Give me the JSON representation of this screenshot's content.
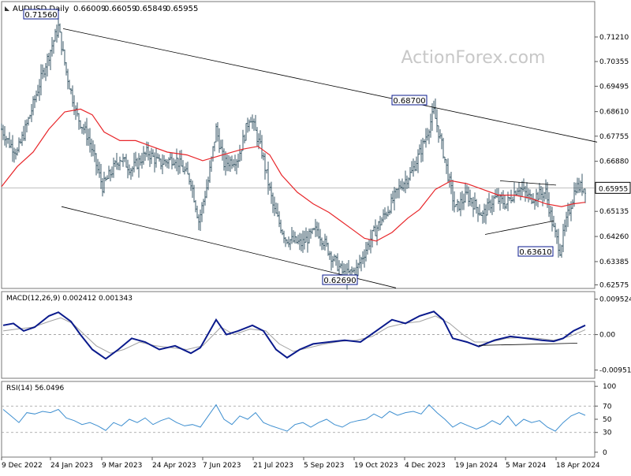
{
  "header": {
    "symbol": "AUDUSD,Daily",
    "ohlc": [
      "0.66009",
      "0.66059",
      "0.65849",
      "0.65955"
    ],
    "watermark": "ActionForex.com"
  },
  "colors": {
    "bars": "#3b5a68",
    "ma": "#e8262a",
    "macd": "#0a1a8c",
    "signal": "#a0a0a0",
    "rsi": "#3e8fd0",
    "lines": "#000000",
    "grid": "#9a9a9a",
    "label_box": "#0a1a8c"
  },
  "chart_data": [
    {
      "type": "candlestick",
      "title": "AUDUSD,Daily",
      "y_ticks": [
        "0.71210",
        "0.70355",
        "0.69495",
        "0.68610",
        "0.67755",
        "0.66880",
        "0.65955",
        "0.65135",
        "0.64260",
        "0.63385",
        "0.62575"
      ],
      "ylim": [
        0.6245,
        0.7195
      ],
      "x_ticks": [
        "9 Dec 2022",
        "24 Jan 2023",
        "9 Mar 2023",
        "24 Apr 2023",
        "7 Jun 2023",
        "21 Jul 2023",
        "5 Sep 2023",
        "19 Oct 2023",
        "4 Dec 2023",
        "19 Jan 2024",
        "5 Mar 2024",
        "18 Apr 2024"
      ],
      "current_price": "0.65955",
      "annotations": [
        {
          "label": "0.71560",
          "value": 0.7156
        },
        {
          "label": "0.68700",
          "value": 0.687
        },
        {
          "label": "0.63610",
          "value": 0.6361
        },
        {
          "label": "0.62690",
          "value": 0.6269
        }
      ],
      "close_path": [
        [
          0,
          0.68
        ],
        [
          10,
          0.675
        ],
        [
          20,
          0.672
        ],
        [
          35,
          0.684
        ],
        [
          55,
          0.702
        ],
        [
          72,
          0.7156
        ],
        [
          82,
          0.7
        ],
        [
          95,
          0.685
        ],
        [
          110,
          0.677
        ],
        [
          128,
          0.66
        ],
        [
          150,
          0.67
        ],
        [
          165,
          0.666
        ],
        [
          185,
          0.672
        ],
        [
          200,
          0.668
        ],
        [
          220,
          0.67
        ],
        [
          240,
          0.662
        ],
        [
          250,
          0.648
        ],
        [
          262,
          0.662
        ],
        [
          272,
          0.68
        ],
        [
          282,
          0.668
        ],
        [
          300,
          0.67
        ],
        [
          315,
          0.685
        ],
        [
          330,
          0.672
        ],
        [
          345,
          0.652
        ],
        [
          360,
          0.642
        ],
        [
          380,
          0.64
        ],
        [
          400,
          0.645
        ],
        [
          420,
          0.635
        ],
        [
          435,
          0.629
        ],
        [
          450,
          0.631
        ],
        [
          470,
          0.643
        ],
        [
          490,
          0.652
        ],
        [
          505,
          0.66
        ],
        [
          520,
          0.665
        ],
        [
          535,
          0.675
        ],
        [
          548,
          0.686
        ],
        [
          560,
          0.672
        ],
        [
          575,
          0.652
        ],
        [
          590,
          0.657
        ],
        [
          610,
          0.65
        ],
        [
          625,
          0.656
        ],
        [
          640,
          0.654
        ],
        [
          655,
          0.66
        ],
        [
          670,
          0.656
        ],
        [
          690,
          0.658
        ],
        [
          700,
          0.645
        ],
        [
          708,
          0.638
        ],
        [
          718,
          0.65
        ],
        [
          728,
          0.66
        ],
        [
          740,
          0.6595
        ]
      ],
      "ma_path": [
        [
          0,
          0.66
        ],
        [
          20,
          0.667
        ],
        [
          40,
          0.672
        ],
        [
          60,
          0.68
        ],
        [
          80,
          0.686
        ],
        [
          100,
          0.687
        ],
        [
          115,
          0.685
        ],
        [
          130,
          0.679
        ],
        [
          150,
          0.676
        ],
        [
          170,
          0.676
        ],
        [
          190,
          0.674
        ],
        [
          210,
          0.672
        ],
        [
          235,
          0.671
        ],
        [
          255,
          0.669
        ],
        [
          280,
          0.671
        ],
        [
          305,
          0.673
        ],
        [
          325,
          0.674
        ],
        [
          340,
          0.671
        ],
        [
          355,
          0.664
        ],
        [
          375,
          0.658
        ],
        [
          395,
          0.654
        ],
        [
          415,
          0.651
        ],
        [
          430,
          0.648
        ],
        [
          445,
          0.645
        ],
        [
          460,
          0.642
        ],
        [
          475,
          0.641
        ],
        [
          495,
          0.644
        ],
        [
          515,
          0.649
        ],
        [
          530,
          0.652
        ],
        [
          550,
          0.659
        ],
        [
          570,
          0.662
        ],
        [
          590,
          0.661
        ],
        [
          610,
          0.659
        ],
        [
          630,
          0.657
        ],
        [
          650,
          0.657
        ],
        [
          670,
          0.656
        ],
        [
          690,
          0.654
        ],
        [
          710,
          0.653
        ],
        [
          725,
          0.654
        ],
        [
          740,
          0.6545
        ]
      ],
      "channel_upper": [
        [
          78,
          0.715
        ],
        [
          755,
          0.6755
        ]
      ],
      "channel_lower": [
        [
          76,
          0.653
        ],
        [
          500,
          0.6247
        ]
      ],
      "triangle_upper": [
        [
          632,
          0.662
        ],
        [
          703,
          0.6605
        ]
      ],
      "triangle_lower": [
        [
          613,
          0.6433
        ],
        [
          700,
          0.648
        ]
      ]
    },
    {
      "type": "line",
      "title": "MACD(12,26,9) 0.002412 0.001343",
      "y_ticks": [
        "0.009524",
        "0.00",
        "-0.00951"
      ],
      "ylim": [
        -0.0113,
        0.0107
      ],
      "macd_path": [
        [
          2,
          0.0025
        ],
        [
          15,
          0.003
        ],
        [
          28,
          0.001
        ],
        [
          42,
          0.002
        ],
        [
          60,
          0.005
        ],
        [
          72,
          0.006
        ],
        [
          88,
          0.0035
        ],
        [
          100,
          0.0
        ],
        [
          115,
          -0.004
        ],
        [
          132,
          -0.0065
        ],
        [
          148,
          -0.004
        ],
        [
          165,
          -0.001
        ],
        [
          182,
          -0.002
        ],
        [
          200,
          -0.004
        ],
        [
          220,
          -0.003
        ],
        [
          240,
          -0.005
        ],
        [
          252,
          -0.0035
        ],
        [
          272,
          0.004
        ],
        [
          285,
          0.0
        ],
        [
          300,
          0.001
        ],
        [
          318,
          0.0025
        ],
        [
          332,
          0.001
        ],
        [
          348,
          -0.004
        ],
        [
          362,
          -0.0062
        ],
        [
          378,
          -0.004
        ],
        [
          395,
          -0.0025
        ],
        [
          415,
          -0.002
        ],
        [
          435,
          -0.0015
        ],
        [
          455,
          -0.002
        ],
        [
          475,
          0.001
        ],
        [
          495,
          0.004
        ],
        [
          512,
          0.003
        ],
        [
          530,
          0.005
        ],
        [
          548,
          0.0062
        ],
        [
          560,
          0.004
        ],
        [
          572,
          -0.001
        ],
        [
          590,
          -0.002
        ],
        [
          605,
          -0.0032
        ],
        [
          625,
          -0.0015
        ],
        [
          645,
          -0.0005
        ],
        [
          665,
          -0.001
        ],
        [
          685,
          -0.0015
        ],
        [
          700,
          -0.0018
        ],
        [
          712,
          -0.001
        ],
        [
          725,
          0.001
        ],
        [
          740,
          0.0025
        ]
      ],
      "signal_path": [
        [
          2,
          0.001
        ],
        [
          20,
          0.0015
        ],
        [
          40,
          0.002
        ],
        [
          60,
          0.0035
        ],
        [
          75,
          0.0045
        ],
        [
          90,
          0.003
        ],
        [
          105,
          0.0
        ],
        [
          120,
          -0.003
        ],
        [
          138,
          -0.005
        ],
        [
          155,
          -0.004
        ],
        [
          175,
          -0.002
        ],
        [
          195,
          -0.003
        ],
        [
          215,
          -0.0035
        ],
        [
          235,
          -0.004
        ],
        [
          255,
          -0.003
        ],
        [
          278,
          0.002
        ],
        [
          295,
          0.0
        ],
        [
          315,
          0.0015
        ],
        [
          335,
          0.001
        ],
        [
          352,
          -0.0025
        ],
        [
          370,
          -0.0045
        ],
        [
          390,
          -0.0035
        ],
        [
          410,
          -0.0025
        ],
        [
          430,
          -0.0018
        ],
        [
          450,
          -0.0015
        ],
        [
          470,
          -0.0005
        ],
        [
          490,
          0.002
        ],
        [
          510,
          0.003
        ],
        [
          530,
          0.0035
        ],
        [
          550,
          0.005
        ],
        [
          568,
          0.003
        ],
        [
          585,
          0.0
        ],
        [
          600,
          -0.002
        ],
        [
          620,
          -0.002
        ],
        [
          640,
          -0.001
        ],
        [
          660,
          -0.0008
        ],
        [
          680,
          -0.001
        ],
        [
          700,
          -0.0015
        ],
        [
          720,
          -0.0005
        ],
        [
          740,
          0.0013
        ]
      ],
      "divergence_line": [
        [
          605,
          -0.0029
        ],
        [
          730,
          -0.0023
        ]
      ]
    },
    {
      "type": "line",
      "title": "RSI(14) 56.0496",
      "y_ticks": [
        "100",
        "70",
        "50",
        "30",
        "0"
      ],
      "ylim": [
        -5,
        105
      ],
      "rsi_path": [
        [
          2,
          65
        ],
        [
          12,
          55
        ],
        [
          22,
          45
        ],
        [
          32,
          60
        ],
        [
          42,
          58
        ],
        [
          52,
          62
        ],
        [
          62,
          60
        ],
        [
          72,
          65
        ],
        [
          82,
          52
        ],
        [
          92,
          48
        ],
        [
          102,
          42
        ],
        [
          112,
          45
        ],
        [
          122,
          40
        ],
        [
          132,
          33
        ],
        [
          142,
          45
        ],
        [
          152,
          40
        ],
        [
          162,
          50
        ],
        [
          172,
          45
        ],
        [
          182,
          52
        ],
        [
          192,
          42
        ],
        [
          202,
          48
        ],
        [
          212,
          52
        ],
        [
          222,
          45
        ],
        [
          232,
          40
        ],
        [
          242,
          42
        ],
        [
          252,
          38
        ],
        [
          262,
          55
        ],
        [
          272,
          72
        ],
        [
          282,
          50
        ],
        [
          292,
          42
        ],
        [
          302,
          55
        ],
        [
          312,
          50
        ],
        [
          322,
          60
        ],
        [
          332,
          45
        ],
        [
          342,
          40
        ],
        [
          352,
          36
        ],
        [
          362,
          32
        ],
        [
          372,
          42
        ],
        [
          382,
          45
        ],
        [
          392,
          38
        ],
        [
          402,
          45
        ],
        [
          412,
          50
        ],
        [
          422,
          42
        ],
        [
          432,
          38
        ],
        [
          442,
          45
        ],
        [
          452,
          48
        ],
        [
          462,
          50
        ],
        [
          472,
          58
        ],
        [
          482,
          52
        ],
        [
          492,
          62
        ],
        [
          502,
          56
        ],
        [
          512,
          60
        ],
        [
          522,
          62
        ],
        [
          532,
          58
        ],
        [
          542,
          72
        ],
        [
          552,
          60
        ],
        [
          562,
          50
        ],
        [
          572,
          38
        ],
        [
          582,
          45
        ],
        [
          592,
          40
        ],
        [
          602,
          35
        ],
        [
          612,
          40
        ],
        [
          622,
          48
        ],
        [
          632,
          42
        ],
        [
          642,
          55
        ],
        [
          652,
          40
        ],
        [
          662,
          50
        ],
        [
          672,
          45
        ],
        [
          682,
          48
        ],
        [
          692,
          38
        ],
        [
          702,
          32
        ],
        [
          712,
          45
        ],
        [
          722,
          55
        ],
        [
          732,
          60
        ],
        [
          740,
          56
        ]
      ]
    }
  ]
}
